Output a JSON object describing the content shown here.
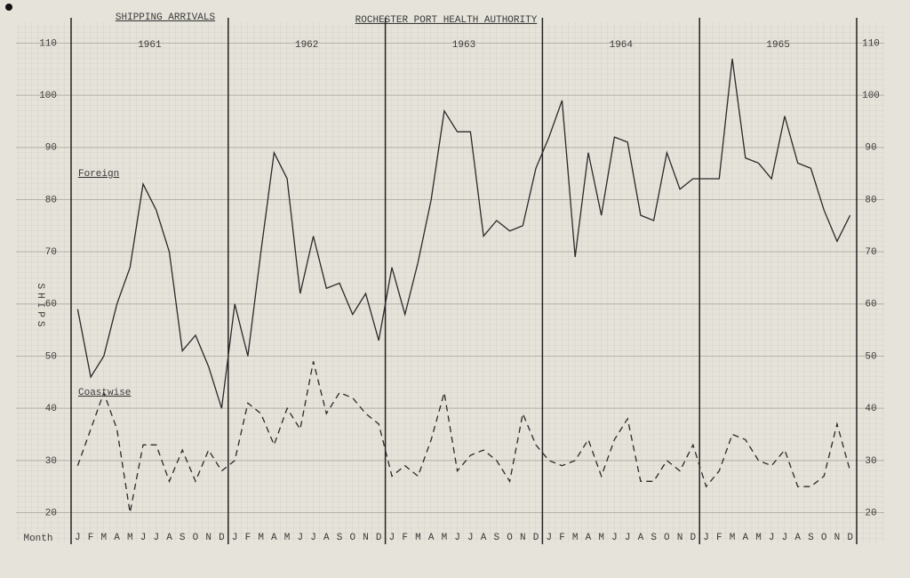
{
  "chart_data": {
    "type": "line",
    "title": "SHIPPING ARRIVALS",
    "subtitle": "ROCHESTER PORT HEALTH AUTHORITY",
    "y_label": "SHIPS",
    "x_label": "Month",
    "year_labels": [
      "1961",
      "1962",
      "1963",
      "1964",
      "1965"
    ],
    "categories": [
      "J",
      "F",
      "M",
      "A",
      "M",
      "J",
      "J",
      "A",
      "S",
      "O",
      "N",
      "D",
      "J",
      "F",
      "M",
      "A",
      "M",
      "J",
      "J",
      "A",
      "S",
      "O",
      "N",
      "D",
      "J",
      "F",
      "M",
      "A",
      "M",
      "J",
      "J",
      "A",
      "S",
      "O",
      "N",
      "D",
      "J",
      "F",
      "M",
      "A",
      "M",
      "J",
      "J",
      "A",
      "S",
      "O",
      "N",
      "D",
      "J",
      "F",
      "M",
      "A",
      "M",
      "J",
      "J",
      "A",
      "S",
      "O",
      "N",
      "D"
    ],
    "series": [
      {
        "name": "Foreign",
        "color": "#2a2a2a",
        "dashed": false,
        "values": [
          59,
          46,
          50,
          60,
          67,
          83,
          78,
          70,
          51,
          54,
          48,
          40,
          60,
          50,
          70,
          89,
          84,
          62,
          73,
          63,
          64,
          58,
          62,
          53,
          67,
          58,
          68,
          80,
          97,
          93,
          93,
          73,
          76,
          74,
          75,
          86,
          92,
          99,
          69,
          89,
          77,
          92,
          91,
          77,
          76,
          89,
          82,
          84,
          84,
          84,
          107,
          88,
          87,
          84,
          96,
          87,
          86,
          78,
          72,
          77
        ]
      },
      {
        "name": "Coastwise",
        "color": "#2a2a2a",
        "dashed": true,
        "values": [
          29,
          36,
          43,
          36,
          20,
          33,
          33,
          26,
          32,
          26,
          32,
          28,
          30,
          41,
          39,
          33,
          40,
          36,
          49,
          39,
          43,
          42,
          39,
          37,
          27,
          29,
          27,
          34,
          43,
          28,
          31,
          32,
          30,
          26,
          39,
          33,
          30,
          29,
          30,
          34,
          27,
          34,
          38,
          26,
          26,
          30,
          28,
          33,
          25,
          28,
          35,
          34,
          30,
          29,
          32,
          25,
          25,
          27,
          37,
          28
        ]
      }
    ],
    "ylim": [
      16,
      114
    ],
    "yticks": [
      20,
      30,
      40,
      50,
      60,
      70,
      80,
      90,
      100,
      110
    ],
    "grid": true
  }
}
